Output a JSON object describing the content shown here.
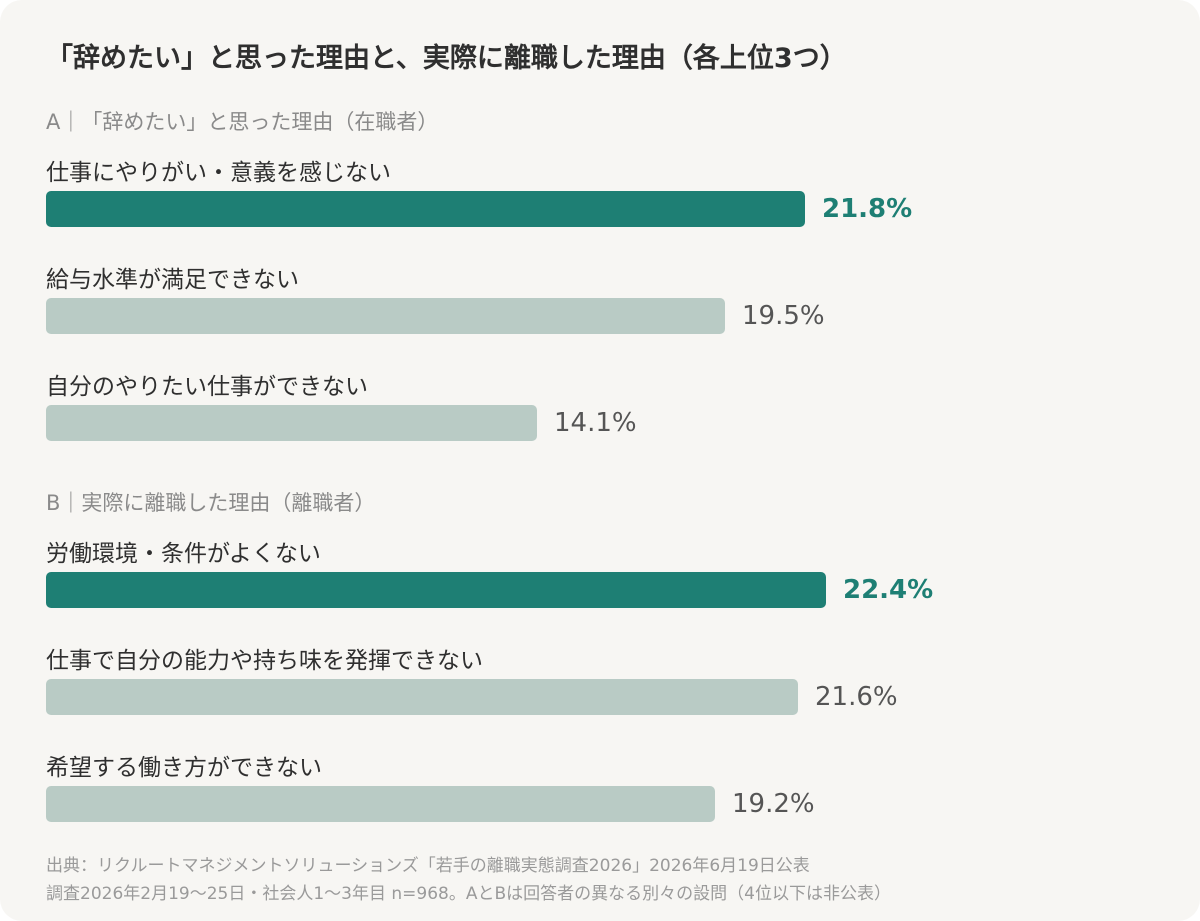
{
  "title": "「辞めたい」と思った理由と、実際に離職した理由（各上位3つ）",
  "colors": {
    "highlight": "#1e7f74",
    "normal": "#b9cbc5",
    "highlight_text": "#1e7f74",
    "normal_text": "#555555"
  },
  "chart_data": {
    "type": "bar",
    "orientation": "horizontal",
    "unit": "%",
    "groups": [
      {
        "header": "A｜「辞めたい」と思った理由（在職者）",
        "items": [
          {
            "label": "仕事にやりがい・意義を感じない",
            "value": 21.8,
            "value_label": "21.8%",
            "highlight": true
          },
          {
            "label": "給与水準が満足できない",
            "value": 19.5,
            "value_label": "19.5%",
            "highlight": false
          },
          {
            "label": "自分のやりたい仕事ができない",
            "value": 14.1,
            "value_label": "14.1%",
            "highlight": false
          }
        ]
      },
      {
        "header": "B｜実際に離職した理由（離職者）",
        "items": [
          {
            "label": "労働環境・条件がよくない",
            "value": 22.4,
            "value_label": "22.4%",
            "highlight": true
          },
          {
            "label": "仕事で自分の能力や持ち味を発揮できない",
            "value": 21.6,
            "value_label": "21.6%",
            "highlight": false
          },
          {
            "label": "希望する働き方ができない",
            "value": 19.2,
            "value_label": "19.2%",
            "highlight": false
          }
        ]
      }
    ]
  },
  "source": {
    "line1": "出典：リクルートマネジメントソリューションズ「若手の離職実態調査2026」2026年6月19日公表",
    "line2": "調査2026年2月19〜25日・社会人1〜3年目 n=968。AとBは回答者の異なる別々の設問（4位以下は非公表）"
  }
}
